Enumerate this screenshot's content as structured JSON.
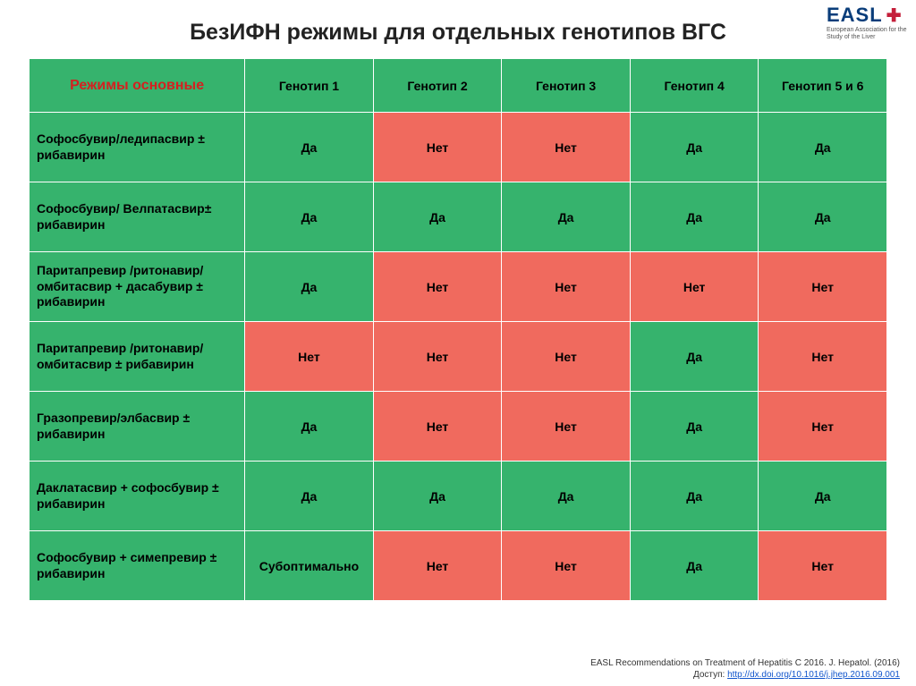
{
  "logo": {
    "main": "EASL",
    "sub": "European Association for the Study of the Liver"
  },
  "title": "БезИФН режимы для отдельных генотипов ВГС",
  "table": {
    "header_first": "Режимы основные",
    "columns": [
      "Генотип 1",
      "Генотип 2",
      "Генотип 3",
      "Генотип 4",
      "Генотип 5 и 6"
    ],
    "yes_color": "#36b36d",
    "no_color": "#f06a5e",
    "rows": [
      {
        "label": "Софосбувир/ледипасвир ± рибавирин",
        "cells": [
          {
            "t": "Да",
            "v": "yes"
          },
          {
            "t": "Нет",
            "v": "no"
          },
          {
            "t": "Нет",
            "v": "no"
          },
          {
            "t": "Да",
            "v": "yes"
          },
          {
            "t": "Да",
            "v": "yes"
          }
        ]
      },
      {
        "label": "Софосбувир/ Велпатасвир± рибавирин",
        "cells": [
          {
            "t": "Да",
            "v": "yes"
          },
          {
            "t": "Да",
            "v": "yes"
          },
          {
            "t": "Да",
            "v": "yes"
          },
          {
            "t": "Да",
            "v": "yes"
          },
          {
            "t": "Да",
            "v": "yes"
          }
        ]
      },
      {
        "label": "Паритапревир /ритонавир/омбитасвир + дасабувир ± рибавирин",
        "cells": [
          {
            "t": "Да",
            "v": "yes"
          },
          {
            "t": "Нет",
            "v": "no"
          },
          {
            "t": "Нет",
            "v": "no"
          },
          {
            "t": "Нет",
            "v": "no"
          },
          {
            "t": "Нет",
            "v": "no"
          }
        ]
      },
      {
        "label": "Паритапревир /ритонавир/омбитасвир ± рибавирин",
        "cells": [
          {
            "t": "Нет",
            "v": "no"
          },
          {
            "t": "Нет",
            "v": "no"
          },
          {
            "t": "Нет",
            "v": "no"
          },
          {
            "t": "Да",
            "v": "yes"
          },
          {
            "t": "Нет",
            "v": "no"
          }
        ]
      },
      {
        "label": "Гразопревир/элбасвир ± рибавирин",
        "cells": [
          {
            "t": "Да",
            "v": "yes"
          },
          {
            "t": "Нет",
            "v": "no"
          },
          {
            "t": "Нет",
            "v": "no"
          },
          {
            "t": "Да",
            "v": "yes"
          },
          {
            "t": "Нет",
            "v": "no"
          }
        ]
      },
      {
        "label": "Даклатасвир + софосбувир ± рибавирин",
        "cells": [
          {
            "t": "Да",
            "v": "yes"
          },
          {
            "t": "Да",
            "v": "yes"
          },
          {
            "t": "Да",
            "v": "yes"
          },
          {
            "t": "Да",
            "v": "yes"
          },
          {
            "t": "Да",
            "v": "yes"
          }
        ]
      },
      {
        "label": "Софосбувир  + симепревир ± рибавирин",
        "cells": [
          {
            "t": "Субоптимально",
            "v": "yes"
          },
          {
            "t": "Нет",
            "v": "no"
          },
          {
            "t": "Нет",
            "v": "no"
          },
          {
            "t": "Да",
            "v": "yes"
          },
          {
            "t": "Нет",
            "v": "no"
          }
        ]
      }
    ]
  },
  "footer": {
    "line1": "EASL Recommendations on Treatment of Hepatitis C 2016. J. Hepatol. (2016)",
    "line2_prefix": "Доступ: ",
    "link": "http://dx.doi.org/10.1016/j.jhep.2016.09.001"
  }
}
